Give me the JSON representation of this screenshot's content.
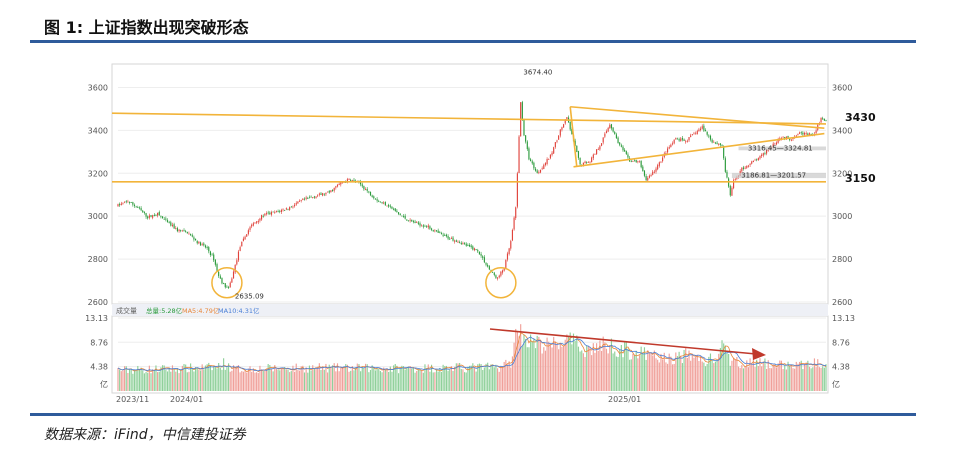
{
  "figure": {
    "title": "图 1:  上证指数出现突破形态",
    "source": "数据来源：iFind，中信建投证券"
  },
  "colors": {
    "up": "#e0433c",
    "down": "#2a9a3b",
    "guide": "#f2b43a",
    "arrow": "#c0392b",
    "frame": "#2f5b9b"
  },
  "chart_data": {
    "type": "candlestick",
    "price_axis": {
      "ticks": [
        "3600",
        "3400",
        "3200",
        "3000",
        "2800",
        "2600"
      ],
      "ylim": [
        2600,
        3700
      ]
    },
    "volume_axis": {
      "ticks": [
        "13.13",
        "8.76",
        "4.38"
      ],
      "unit": "亿",
      "ylim": [
        0,
        13.13
      ]
    },
    "x_labels": [
      "2023/11",
      "2024/01",
      "2025/01"
    ],
    "volume_legend": {
      "label": "成交量",
      "items": [
        "总量:5.28亿",
        "MA5:4.79亿",
        "MA10:4.31亿"
      ]
    },
    "annotations": {
      "high": "3674.40",
      "low": "2635.09",
      "gap_upper": "3316.45—3324.81",
      "gap_lower": "3186.81—3201.57"
    },
    "levels": [
      "3430",
      "3150"
    ],
    "price_path": [
      [
        0,
        3050
      ],
      [
        6,
        3070
      ],
      [
        12,
        3040
      ],
      [
        18,
        2995
      ],
      [
        24,
        3010
      ],
      [
        30,
        2970
      ],
      [
        36,
        2935
      ],
      [
        42,
        2925
      ],
      [
        48,
        2880
      ],
      [
        54,
        2850
      ],
      [
        58,
        2800
      ],
      [
        61,
        2720
      ],
      [
        64,
        2680
      ],
      [
        67,
        2660
      ],
      [
        70,
        2740
      ],
      [
        74,
        2860
      ],
      [
        80,
        2950
      ],
      [
        88,
        3005
      ],
      [
        96,
        3020
      ],
      [
        104,
        3040
      ],
      [
        112,
        3075
      ],
      [
        120,
        3095
      ],
      [
        128,
        3110
      ],
      [
        134,
        3150
      ],
      [
        140,
        3170
      ],
      [
        146,
        3155
      ],
      [
        152,
        3110
      ],
      [
        158,
        3070
      ],
      [
        164,
        3050
      ],
      [
        170,
        3010
      ],
      [
        176,
        2980
      ],
      [
        182,
        2965
      ],
      [
        188,
        2950
      ],
      [
        194,
        2920
      ],
      [
        200,
        2900
      ],
      [
        206,
        2885
      ],
      [
        212,
        2860
      ],
      [
        218,
        2840
      ],
      [
        222,
        2790
      ],
      [
        226,
        2740
      ],
      [
        230,
        2710
      ],
      [
        234,
        2760
      ],
      [
        238,
        2880
      ],
      [
        241,
        3040
      ],
      [
        244,
        3530
      ],
      [
        246,
        3380
      ],
      [
        249,
        3270
      ],
      [
        254,
        3200
      ],
      [
        262,
        3280
      ],
      [
        268,
        3400
      ],
      [
        272,
        3460
      ],
      [
        276,
        3350
      ],
      [
        280,
        3240
      ],
      [
        286,
        3260
      ],
      [
        292,
        3330
      ],
      [
        298,
        3430
      ],
      [
        304,
        3330
      ],
      [
        310,
        3260
      ],
      [
        316,
        3250
      ],
      [
        320,
        3170
      ],
      [
        326,
        3220
      ],
      [
        332,
        3300
      ],
      [
        338,
        3360
      ],
      [
        344,
        3350
      ],
      [
        350,
        3390
      ],
      [
        354,
        3415
      ],
      [
        360,
        3350
      ],
      [
        366,
        3330
      ],
      [
        368,
        3210
      ],
      [
        371,
        3100
      ],
      [
        373,
        3160
      ],
      [
        378,
        3220
      ],
      [
        384,
        3250
      ],
      [
        390,
        3280
      ],
      [
        396,
        3330
      ],
      [
        402,
        3370
      ],
      [
        408,
        3360
      ],
      [
        412,
        3390
      ],
      [
        418,
        3380
      ],
      [
        422,
        3380
      ],
      [
        426,
        3460
      ],
      [
        428,
        3440
      ]
    ],
    "volume_path": [
      [
        0,
        3.8
      ],
      [
        30,
        4.0
      ],
      [
        60,
        4.3
      ],
      [
        64,
        5.0
      ],
      [
        70,
        4.0
      ],
      [
        120,
        4.2
      ],
      [
        170,
        4.1
      ],
      [
        230,
        4.3
      ],
      [
        238,
        5.2
      ],
      [
        240,
        7.8
      ],
      [
        242,
        13.1
      ],
      [
        244,
        10.5
      ],
      [
        250,
        8.8
      ],
      [
        262,
        8.1
      ],
      [
        272,
        9.2
      ],
      [
        284,
        7.6
      ],
      [
        296,
        8.4
      ],
      [
        310,
        7.2
      ],
      [
        322,
        6.4
      ],
      [
        334,
        5.8
      ],
      [
        346,
        6.6
      ],
      [
        356,
        5.4
      ],
      [
        364,
        6.2
      ],
      [
        366,
        7.8
      ],
      [
        372,
        5.3
      ],
      [
        392,
        4.9
      ],
      [
        412,
        4.6
      ],
      [
        428,
        5.3
      ]
    ]
  }
}
